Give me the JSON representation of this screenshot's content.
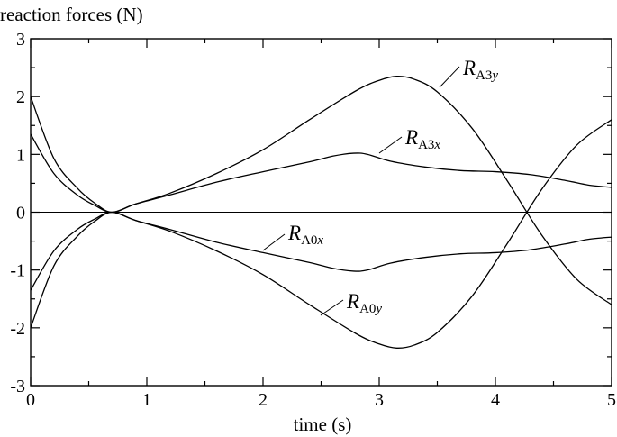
{
  "chart_data": {
    "type": "line",
    "ylabel": "reaction forces (N)",
    "xlabel": "time (s)",
    "xlim": [
      0,
      5
    ],
    "ylim": [
      -3,
      3
    ],
    "xticks": [
      "0",
      "1",
      "2",
      "3",
      "4",
      "5"
    ],
    "yticks": [
      "3",
      "2",
      "1",
      "0",
      "-1",
      "-2",
      "-3"
    ],
    "grid": false,
    "zero_line": true,
    "series": [
      {
        "key": "A3y",
        "annotation": {
          "symbol": "R",
          "subscript_roman": "A3",
          "subscript_italic": "y",
          "at": [
            3.5,
            2.3
          ]
        },
        "points": [
          [
            0,
            2.0
          ],
          [
            0.2,
            0.93
          ],
          [
            0.4,
            0.42
          ],
          [
            0.55,
            0.16
          ],
          [
            0.7,
            0.0
          ],
          [
            0.9,
            0.14
          ],
          [
            1.2,
            0.33
          ],
          [
            1.6,
            0.67
          ],
          [
            2.0,
            1.08
          ],
          [
            2.4,
            1.6
          ],
          [
            2.8,
            2.1
          ],
          [
            3.0,
            2.28
          ],
          [
            3.15,
            2.35
          ],
          [
            3.3,
            2.3
          ],
          [
            3.5,
            2.08
          ],
          [
            3.8,
            1.45
          ],
          [
            4.1,
            0.55
          ],
          [
            4.4,
            -0.4
          ],
          [
            4.7,
            -1.16
          ],
          [
            5.0,
            -1.6
          ]
        ]
      },
      {
        "key": "A3x",
        "annotation": {
          "symbol": "R",
          "subscript_roman": "A3",
          "subscript_italic": "x",
          "at": [
            3.0,
            1.05
          ]
        },
        "points": [
          [
            0,
            1.35
          ],
          [
            0.2,
            0.67
          ],
          [
            0.4,
            0.3
          ],
          [
            0.55,
            0.12
          ],
          [
            0.7,
            0.0
          ],
          [
            0.9,
            0.14
          ],
          [
            1.2,
            0.3
          ],
          [
            1.6,
            0.52
          ],
          [
            2.0,
            0.7
          ],
          [
            2.4,
            0.87
          ],
          [
            2.6,
            0.97
          ],
          [
            2.78,
            1.02
          ],
          [
            2.9,
            1.0
          ],
          [
            3.1,
            0.88
          ],
          [
            3.4,
            0.78
          ],
          [
            3.7,
            0.72
          ],
          [
            4.0,
            0.7
          ],
          [
            4.3,
            0.65
          ],
          [
            4.6,
            0.55
          ],
          [
            4.8,
            0.47
          ],
          [
            5.0,
            0.43
          ]
        ]
      },
      {
        "key": "A0x",
        "annotation": {
          "symbol": "R",
          "subscript_roman": "A0",
          "subscript_italic": "x",
          "at": [
            2.08,
            -0.25
          ]
        },
        "points": [
          [
            0,
            -1.35
          ],
          [
            0.2,
            -0.67
          ],
          [
            0.4,
            -0.3
          ],
          [
            0.55,
            -0.12
          ],
          [
            0.7,
            0.0
          ],
          [
            0.9,
            -0.14
          ],
          [
            1.2,
            -0.3
          ],
          [
            1.6,
            -0.52
          ],
          [
            2.0,
            -0.7
          ],
          [
            2.4,
            -0.87
          ],
          [
            2.6,
            -0.97
          ],
          [
            2.78,
            -1.02
          ],
          [
            2.9,
            -1.0
          ],
          [
            3.1,
            -0.88
          ],
          [
            3.4,
            -0.78
          ],
          [
            3.7,
            -0.72
          ],
          [
            4.0,
            -0.7
          ],
          [
            4.3,
            -0.65
          ],
          [
            4.6,
            -0.55
          ],
          [
            4.8,
            -0.47
          ],
          [
            5.0,
            -0.43
          ]
        ]
      },
      {
        "key": "A0y",
        "annotation": {
          "symbol": "R",
          "subscript_roman": "A0",
          "subscript_italic": "y",
          "at": [
            2.72,
            -1.68
          ]
        },
        "points": [
          [
            0,
            -2.0
          ],
          [
            0.2,
            -0.93
          ],
          [
            0.4,
            -0.42
          ],
          [
            0.55,
            -0.16
          ],
          [
            0.7,
            0.0
          ],
          [
            0.9,
            -0.14
          ],
          [
            1.2,
            -0.33
          ],
          [
            1.6,
            -0.67
          ],
          [
            2.0,
            -1.08
          ],
          [
            2.4,
            -1.6
          ],
          [
            2.8,
            -2.1
          ],
          [
            3.0,
            -2.28
          ],
          [
            3.15,
            -2.35
          ],
          [
            3.3,
            -2.3
          ],
          [
            3.5,
            -2.08
          ],
          [
            3.8,
            -1.45
          ],
          [
            4.1,
            -0.55
          ],
          [
            4.4,
            0.4
          ],
          [
            4.7,
            1.16
          ],
          [
            5.0,
            1.6
          ]
        ]
      }
    ]
  }
}
